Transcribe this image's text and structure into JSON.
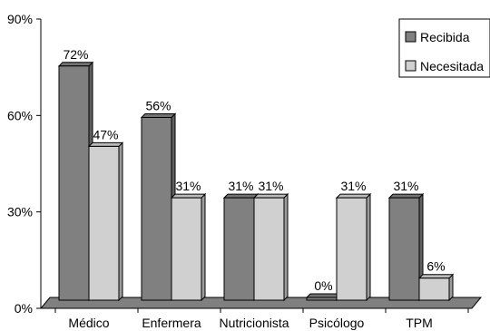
{
  "chart_data": {
    "type": "bar",
    "title": "",
    "xlabel": "",
    "ylabel": "",
    "categories": [
      "Médico",
      "Enfermera",
      "Nutricionista",
      "Psicólogo",
      "TPM"
    ],
    "series": [
      {
        "name": "Recibida",
        "values": [
          72,
          56,
          31,
          0,
          31
        ],
        "labels": [
          "72%",
          "56%",
          "31%",
          "0%",
          "31%"
        ],
        "color": "#808080"
      },
      {
        "name": "Necesitada",
        "values": [
          47,
          31,
          31,
          31,
          6
        ],
        "labels": [
          "47%",
          "31%",
          "31%",
          "31%",
          "6%"
        ],
        "color": "#d0d0d0"
      }
    ],
    "ylim": [
      0,
      90
    ],
    "yticks": [
      0,
      30,
      60,
      90
    ],
    "ytick_labels": [
      "0%",
      "30%",
      "60%",
      "90%"
    ],
    "grid": false,
    "legend_position": "top-right",
    "floor_color": "#808080"
  }
}
